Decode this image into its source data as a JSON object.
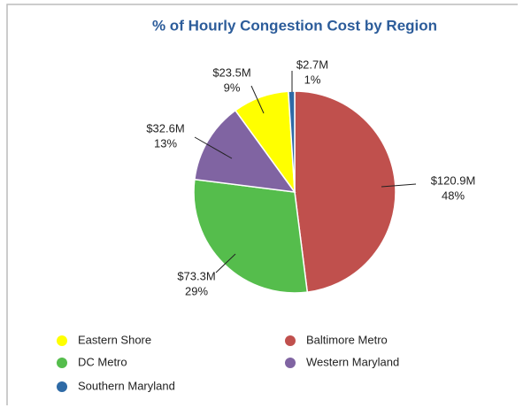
{
  "chart_data": {
    "type": "pie",
    "title": "% of Hourly Congestion Cost by Region",
    "categories": [
      "Baltimore Metro",
      "DC Metro",
      "Western Maryland",
      "Eastern Shore",
      "Southern Maryland"
    ],
    "values": [
      48,
      29,
      13,
      9,
      1
    ],
    "value_labels": [
      "48%",
      "29%",
      "13%",
      "9%",
      "1%"
    ],
    "costs": [
      120.9,
      73.3,
      32.6,
      23.5,
      2.7
    ],
    "cost_labels": [
      "$120.9M",
      "$73.3M",
      "$32.6M",
      "$23.5M",
      "$2.7M"
    ],
    "colors": [
      "#c0504d",
      "#55bd4c",
      "#8064a2",
      "#ffff00",
      "#2e6aa6"
    ],
    "legend": "bottom"
  }
}
